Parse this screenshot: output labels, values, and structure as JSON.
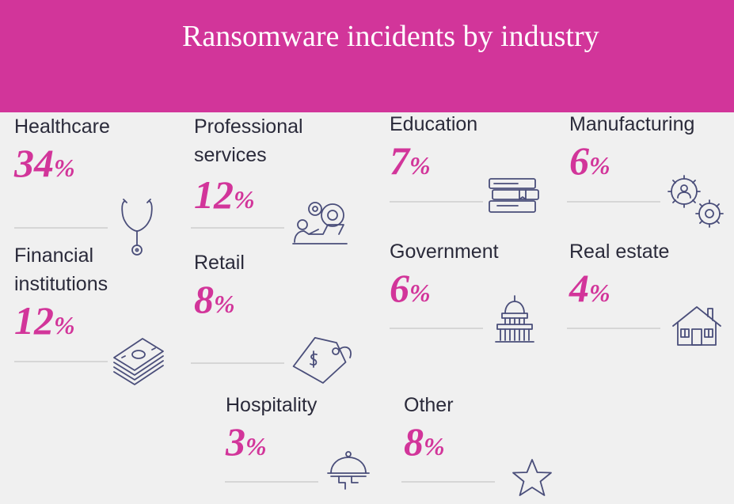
{
  "title": "Ransomware incidents by industry",
  "colors": {
    "header": "#d2359a",
    "accent": "#d2359a",
    "text": "#2a2a3a",
    "icon": "#4a4e7a",
    "background": "#f0f0f0"
  },
  "chart_data": {
    "type": "table",
    "title": "Ransomware incidents by industry",
    "unit": "%",
    "categories": [
      "Healthcare",
      "Professional services",
      "Education",
      "Manufacturing",
      "Financial institutions",
      "Retail",
      "Government",
      "Real estate",
      "Hospitality",
      "Other"
    ],
    "values": [
      34,
      12,
      7,
      6,
      12,
      8,
      6,
      4,
      3,
      8
    ],
    "items": [
      {
        "label": "Healthcare",
        "value": "34",
        "unit": "%",
        "icon": "stethoscope-icon"
      },
      {
        "label": "Professional services",
        "value": "12",
        "unit": "%",
        "icon": "person-gears-laptop-icon"
      },
      {
        "label": "Education",
        "value": "7",
        "unit": "%",
        "icon": "books-icon"
      },
      {
        "label": "Manufacturing",
        "value": "6",
        "unit": "%",
        "icon": "gears-icon"
      },
      {
        "label": "Financial institutions",
        "value": "12",
        "unit": "%",
        "icon": "money-stack-icon"
      },
      {
        "label": "Retail",
        "value": "8",
        "unit": "%",
        "icon": "price-tag-icon"
      },
      {
        "label": "Government",
        "value": "6",
        "unit": "%",
        "icon": "capitol-building-icon"
      },
      {
        "label": "Real estate",
        "value": "4",
        "unit": "%",
        "icon": "house-icon"
      },
      {
        "label": "Hospitality",
        "value": "3",
        "unit": "%",
        "icon": "serving-cloche-icon"
      },
      {
        "label": "Other",
        "value": "8",
        "unit": "%",
        "icon": "star-icon"
      }
    ]
  }
}
